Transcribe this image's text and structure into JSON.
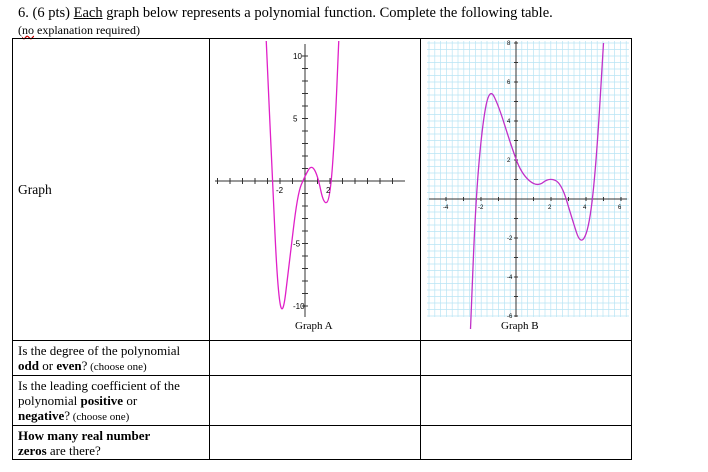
{
  "header": {
    "number": "6.",
    "points": "(6 pts)",
    "each": "Each",
    "rest": "graph below represents a polynomial function. Complete the following table.",
    "note_open": "(",
    "note_no": "no",
    "note_rest": "explanation required)"
  },
  "table": {
    "graph_row_label": "Graph",
    "rows": [
      {
        "line1": "Is the degree of the polynomial",
        "bold": "odd",
        "mid": " or ",
        "bold2": "even",
        "tail": "?",
        "small": " (choose one)"
      },
      {
        "line1": "Is the leading coefficient of the",
        "line2_pre": "polynomial ",
        "bold": "positive",
        "mid": " or",
        "bold2": "negative",
        "tail": "?",
        "small": " (choose one)"
      },
      {
        "bold_line1": "How many real number",
        "bold2": "zeros",
        "tail": " are there?"
      }
    ]
  },
  "graph_a": {
    "caption": "Graph A",
    "x_ticks": [
      "-2",
      "2"
    ],
    "y_ticks": [
      "10",
      "5",
      "-5",
      "-10"
    ],
    "curve_color": "#e020c8"
  },
  "graph_b": {
    "caption": "Graph B",
    "x_ticks": [
      "-4",
      "-2",
      "2",
      "4",
      "6"
    ],
    "y_ticks": [
      "8",
      "6",
      "4",
      "2",
      "-2",
      "-4",
      "-6"
    ],
    "curve_color": "#c030c8",
    "grid_color": "#b8e4f4"
  }
}
